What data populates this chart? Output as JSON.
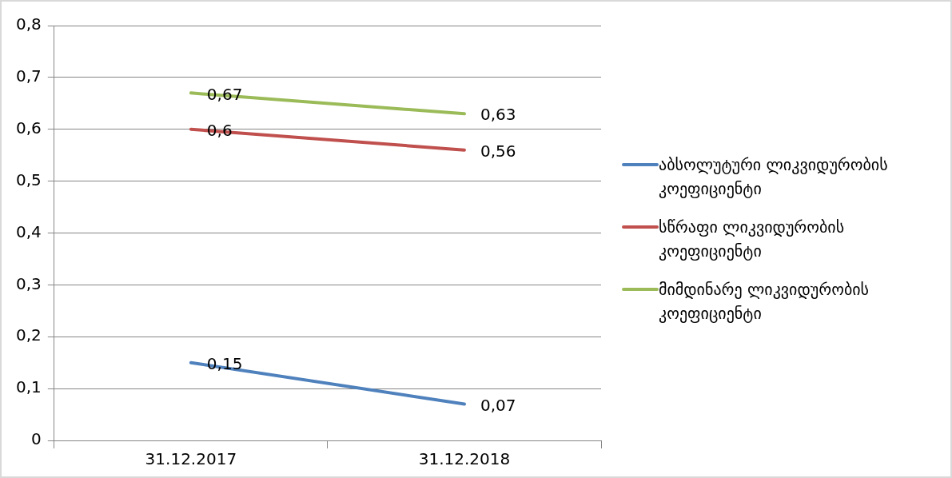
{
  "chart_data": {
    "type": "line",
    "categories": [
      "31.12.2017",
      "31.12.2018"
    ],
    "series": [
      {
        "name": "აბსოლუტური ლიკვიდურობის კოეფიციენტი",
        "color": "#4f81bd",
        "values": [
          0.15,
          0.07
        ],
        "value_labels": [
          "0,15",
          "0,07"
        ]
      },
      {
        "name": "სწრაფი ლიკვიდურობის კოეფიციენტი",
        "color": "#c0504d",
        "values": [
          0.6,
          0.56
        ],
        "value_labels": [
          "0,6",
          "0,56"
        ]
      },
      {
        "name": "მიმდინარე ლიკვიდურობის კოეფიციენტი",
        "color": "#9bbb59",
        "values": [
          0.67,
          0.63
        ],
        "value_labels": [
          "0,67",
          "0,63"
        ]
      }
    ],
    "ylim": [
      0,
      0.8
    ],
    "yticks": [
      {
        "value": 0,
        "label": "0"
      },
      {
        "value": 0.1,
        "label": "0,1"
      },
      {
        "value": 0.2,
        "label": "0,2"
      },
      {
        "value": 0.3,
        "label": "0,3"
      },
      {
        "value": 0.4,
        "label": "0,4"
      },
      {
        "value": 0.5,
        "label": "0,5"
      },
      {
        "value": 0.6,
        "label": "0,6"
      },
      {
        "value": 0.7,
        "label": "0,7"
      },
      {
        "value": 0.8,
        "label": "0,8"
      }
    ],
    "grid": "y",
    "legend": "right",
    "marker": "none",
    "line_style": "solid"
  }
}
